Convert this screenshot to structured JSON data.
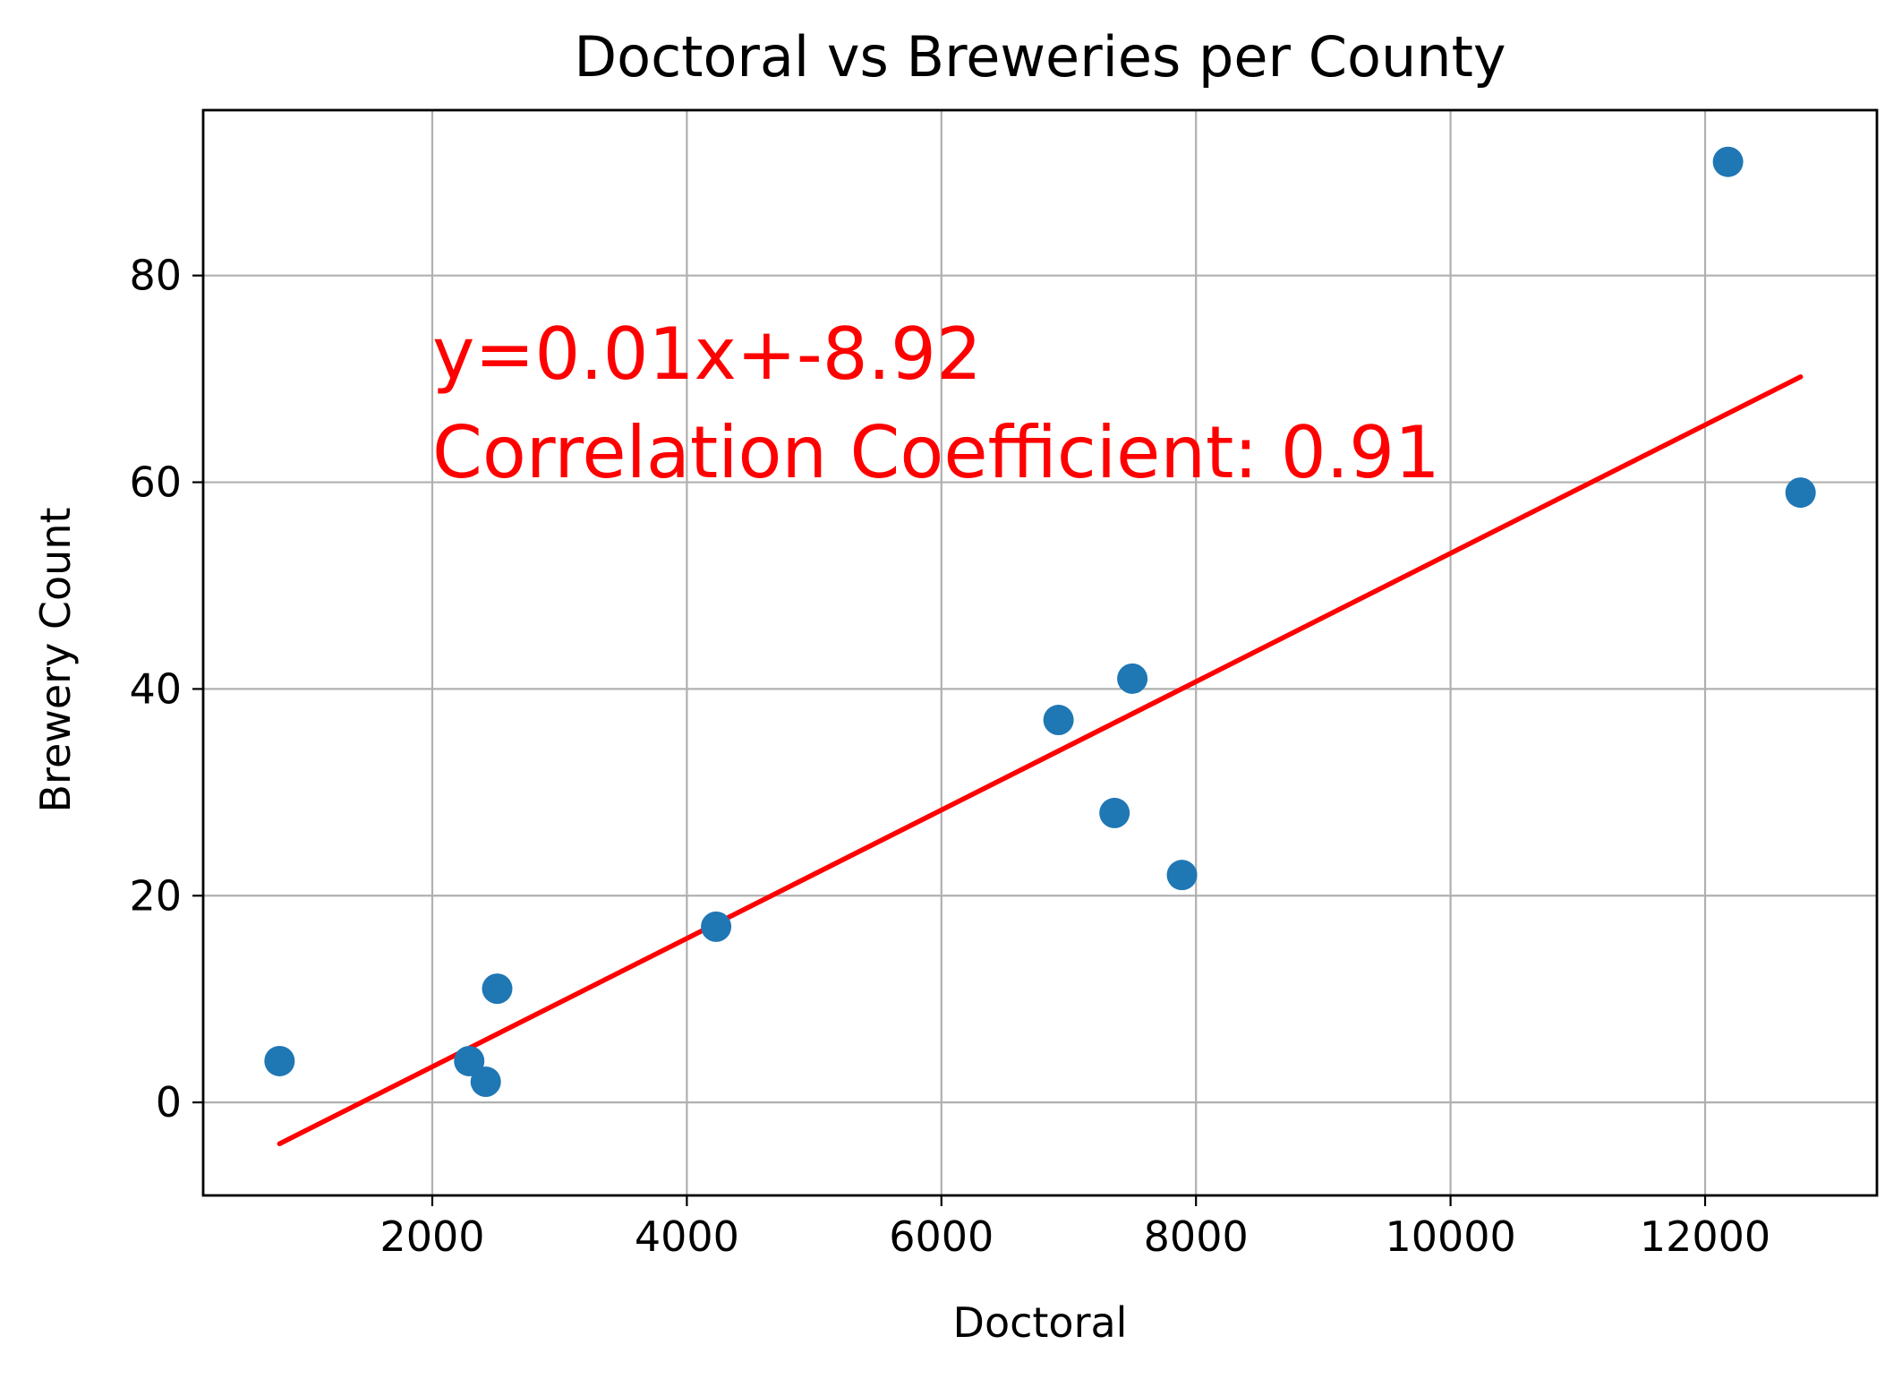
{
  "chart_data": {
    "type": "scatter",
    "title": "Doctoral vs Breweries per County",
    "xlabel": "Doctoral",
    "ylabel": "Brewery Count",
    "xlim": [
      200,
      13350
    ],
    "ylim": [
      -9,
      96
    ],
    "grid": true,
    "xticks": [
      2000,
      4000,
      6000,
      8000,
      10000,
      12000
    ],
    "xtick_labels": [
      "2000",
      "4000",
      "6000",
      "8000",
      "10000",
      "12000"
    ],
    "yticks": [
      0,
      20,
      40,
      60,
      80
    ],
    "ytick_labels": [
      "0",
      "20",
      "40",
      "60",
      "80"
    ],
    "series": [
      {
        "name": "points",
        "color": "#1f77b4",
        "x": [
          800,
          2290,
          2420,
          2510,
          4230,
          6920,
          7360,
          7500,
          7890,
          12180,
          12750
        ],
        "y": [
          4,
          4,
          2,
          11,
          17,
          37,
          28,
          41,
          22,
          91,
          59
        ]
      }
    ],
    "regression": {
      "color": "#ff0000",
      "x_start": 800,
      "x_end": 12750,
      "y_start": -4,
      "y_end": 70.2
    },
    "annotations": [
      {
        "text": "y=0.01x+-8.92",
        "x": 2000,
        "y": 70,
        "color": "#ff0000"
      },
      {
        "text": "Correlation Coefficient: 0.91",
        "x": 2000,
        "y": 60.5,
        "color": "#ff0000"
      }
    ]
  }
}
